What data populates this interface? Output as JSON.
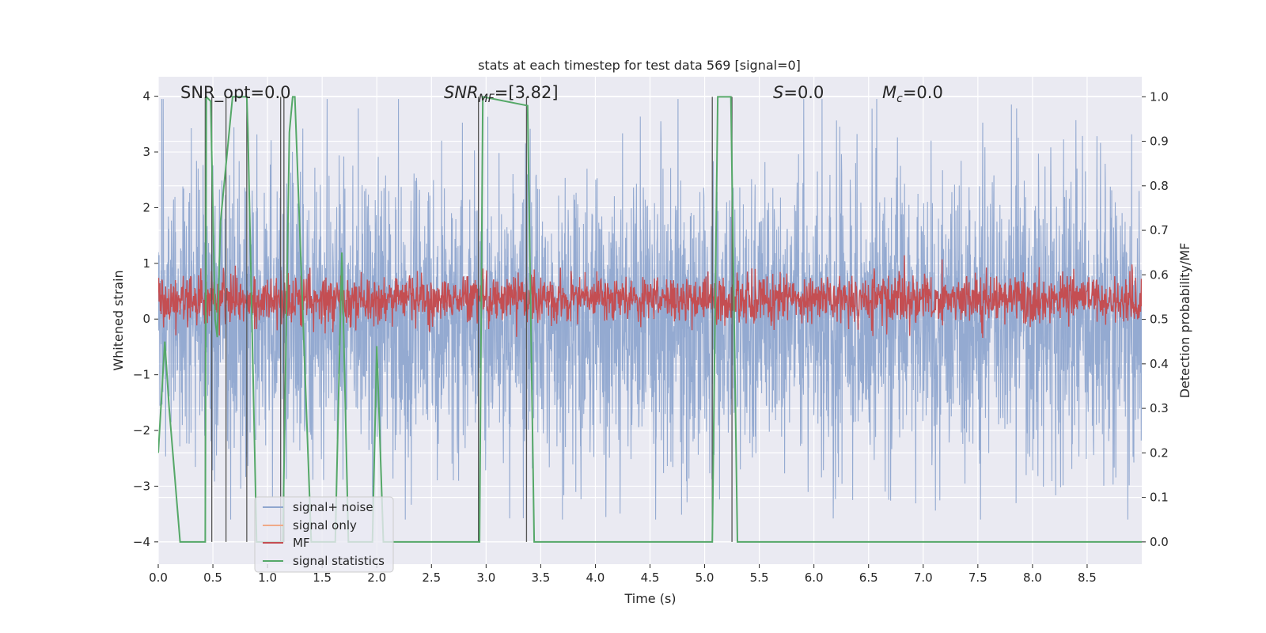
{
  "chart_data": {
    "type": "line",
    "title": "stats at each timestep for test data 569 [signal=0]",
    "xlabel": "Time (s)",
    "ylabel": "Whitened strain",
    "ylabel_right": "Detection probability/MF",
    "xlim": [
      0.0,
      9.0
    ],
    "ylim": [
      -4.4,
      4.35
    ],
    "ylim_right": [
      -0.05,
      1.045
    ],
    "x_ticks": [
      "0.0",
      "0.5",
      "1.0",
      "1.5",
      "2.0",
      "2.5",
      "3.0",
      "3.5",
      "4.0",
      "4.5",
      "5.0",
      "5.5",
      "6.0",
      "6.5",
      "7.0",
      "7.5",
      "8.0",
      "8.5"
    ],
    "x_tick_values": [
      0.0,
      0.5,
      1.0,
      1.5,
      2.0,
      2.5,
      3.0,
      3.5,
      4.0,
      4.5,
      5.0,
      5.5,
      6.0,
      6.5,
      7.0,
      7.5,
      8.0,
      8.5
    ],
    "y_ticks": [
      "4",
      "3",
      "2",
      "1",
      "0",
      "−1",
      "−2",
      "−3",
      "−4"
    ],
    "y_tick_values": [
      4,
      3,
      2,
      1,
      0,
      -1,
      -2,
      -3,
      -4
    ],
    "y_ticks_right": [
      "1.0",
      "0.9",
      "0.8",
      "0.7",
      "0.6",
      "0.5",
      "0.4",
      "0.3",
      "0.2",
      "0.1",
      "0.0"
    ],
    "y_tick_values_right": [
      1.0,
      0.9,
      0.8,
      0.7,
      0.6,
      0.5,
      0.4,
      0.3,
      0.2,
      0.1,
      0.0
    ],
    "grid": true,
    "legend_position": "lower-left",
    "annotations": {
      "snr_opt": "SNR_opt=0.0",
      "snr_mf_label": "SNR",
      "snr_mf_sub": "MF",
      "snr_mf_value": "=[3.82]",
      "s_label": "S",
      "s_value": "=0.0",
      "mc_label": "M",
      "mc_sub": "c",
      "mc_value": "=0.0"
    },
    "series": [
      {
        "name": "signal+ noise",
        "axis": "left",
        "color": "#8fa6cf",
        "kind": "noise",
        "envelope_upper": 2.4,
        "envelope_lower": -2.4,
        "peak_max": 3.95,
        "peak_min": -3.6
      },
      {
        "name": "signal only",
        "axis": "left",
        "color": "#f0a987",
        "values": []
      },
      {
        "name": "MF",
        "axis": "right",
        "color": "#c44e52",
        "kind": "noise",
        "center": 0.546,
        "band": 0.055
      },
      {
        "name": "signal statistics",
        "axis": "right",
        "color": "#55a868",
        "x": [
          0.0,
          0.06,
          0.1,
          0.15,
          0.2,
          0.43,
          0.44,
          0.48,
          0.52,
          0.54,
          0.57,
          0.68,
          0.81,
          0.82,
          0.9,
          1.14,
          1.2,
          1.23,
          1.25,
          1.4,
          1.62,
          1.68,
          1.74,
          1.96,
          2.0,
          2.06,
          2.94,
          2.97,
          3.38,
          3.44,
          5.07,
          5.12,
          5.24,
          5.3,
          9.0
        ],
        "y": [
          0.2,
          0.45,
          0.3,
          0.15,
          0.0,
          0.0,
          1.0,
          0.99,
          0.5,
          0.46,
          0.72,
          1.0,
          1.0,
          0.93,
          0.0,
          0.0,
          0.92,
          1.0,
          1.0,
          0.0,
          0.0,
          0.65,
          0.0,
          0.0,
          0.44,
          0.0,
          0.0,
          1.0,
          0.98,
          0.0,
          0.0,
          1.0,
          1.0,
          0.0,
          0.0
        ]
      }
    ],
    "vertical_lines_x": [
      0.43,
      0.49,
      0.62,
      0.81,
      1.12,
      1.15,
      2.93,
      3.37,
      5.07,
      5.25
    ],
    "vertical_line_color": "#555555"
  }
}
